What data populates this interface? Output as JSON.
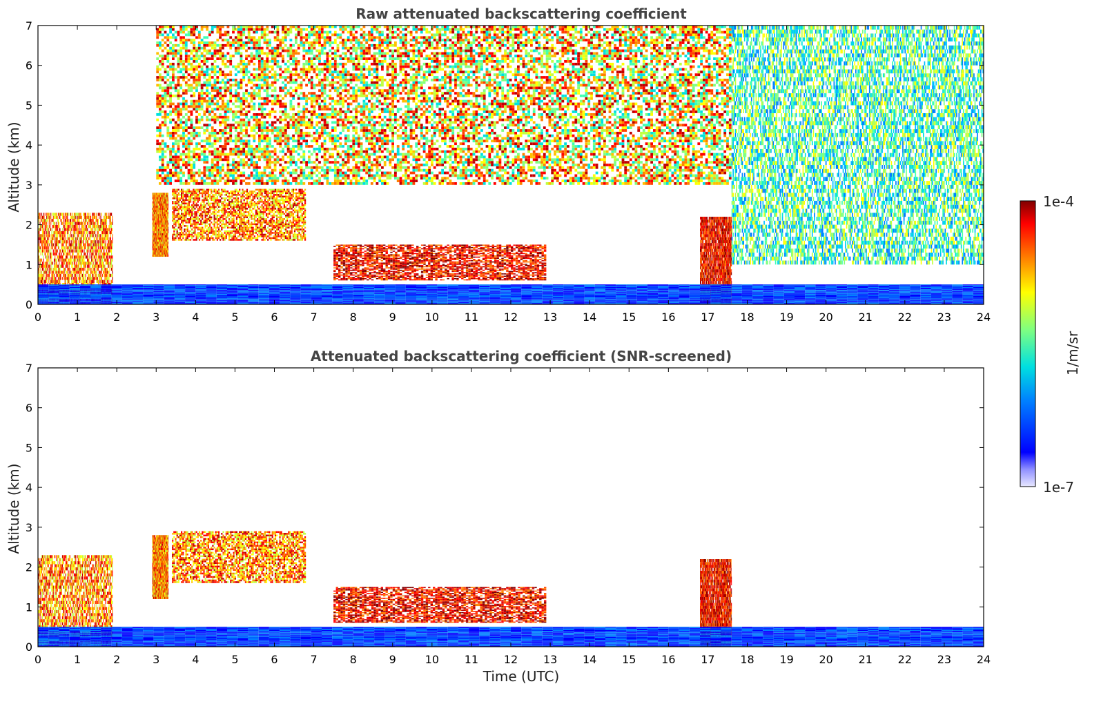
{
  "chart_data": [
    {
      "type": "heatmap",
      "title": "Raw attenuated backscattering coefficient",
      "xlabel": "",
      "ylabel": "Altitude (km)",
      "xlim": [
        0,
        24
      ],
      "ylim": [
        0,
        7
      ],
      "xticks": [
        "0",
        "1",
        "2",
        "3",
        "4",
        "5",
        "6",
        "7",
        "8",
        "9",
        "10",
        "11",
        "12",
        "13",
        "14",
        "15",
        "16",
        "17",
        "18",
        "19",
        "20",
        "21",
        "22",
        "23",
        "24"
      ],
      "yticks": [
        "0",
        "1",
        "2",
        "3",
        "4",
        "5",
        "6",
        "7"
      ],
      "colorbar": {
        "label": "1/m/sr",
        "min_label": "1e-7",
        "max_label": "1e-4",
        "scale": "log",
        "colormap": "jet"
      },
      "features": [
        {
          "x": [
            0,
            1.9
          ],
          "y": [
            0,
            2.3
          ],
          "level": "high"
        },
        {
          "x": [
            2.9,
            3.3
          ],
          "y": [
            1.2,
            2.8
          ],
          "level": "high"
        },
        {
          "x": [
            3.4,
            6.8
          ],
          "y": [
            1.6,
            2.9
          ],
          "level": "high"
        },
        {
          "x": [
            7.5,
            12.9
          ],
          "y": [
            0.6,
            1.5
          ],
          "level": "very-high"
        },
        {
          "x": [
            16.8,
            17.6
          ],
          "y": [
            0,
            2.2
          ],
          "level": "very-high"
        },
        {
          "x": [
            0,
            24
          ],
          "y": [
            0,
            0.5
          ],
          "level": "low"
        },
        {
          "x": [
            3,
            17.6
          ],
          "y": [
            3,
            7
          ],
          "level": "noise-high"
        },
        {
          "x": [
            17.6,
            24
          ],
          "y": [
            1,
            7
          ],
          "level": "noise-medium"
        }
      ]
    },
    {
      "type": "heatmap",
      "title": "Attenuated backscattering coefficient (SNR-screened)",
      "xlabel": "Time (UTC)",
      "ylabel": "Altitude (km)",
      "xlim": [
        0,
        24
      ],
      "ylim": [
        0,
        7
      ],
      "xticks": [
        "0",
        "1",
        "2",
        "3",
        "4",
        "5",
        "6",
        "7",
        "8",
        "9",
        "10",
        "11",
        "12",
        "13",
        "14",
        "15",
        "16",
        "17",
        "18",
        "19",
        "20",
        "21",
        "22",
        "23",
        "24"
      ],
      "yticks": [
        "0",
        "1",
        "2",
        "3",
        "4",
        "5",
        "6",
        "7"
      ],
      "colorbar": {
        "label": "1/m/sr",
        "min_label": "1e-7",
        "max_label": "1e-4",
        "scale": "log",
        "colormap": "jet"
      },
      "features": [
        {
          "x": [
            0,
            1.9
          ],
          "y": [
            0,
            2.3
          ],
          "level": "high"
        },
        {
          "x": [
            2.9,
            3.3
          ],
          "y": [
            1.2,
            2.8
          ],
          "level": "high"
        },
        {
          "x": [
            3.4,
            6.8
          ],
          "y": [
            1.6,
            2.9
          ],
          "level": "high"
        },
        {
          "x": [
            7.5,
            12.9
          ],
          "y": [
            0.6,
            1.5
          ],
          "level": "very-high"
        },
        {
          "x": [
            16.8,
            17.6
          ],
          "y": [
            0,
            2.2
          ],
          "level": "very-high"
        },
        {
          "x": [
            0,
            24
          ],
          "y": [
            0,
            0.5
          ],
          "level": "low"
        }
      ]
    }
  ]
}
